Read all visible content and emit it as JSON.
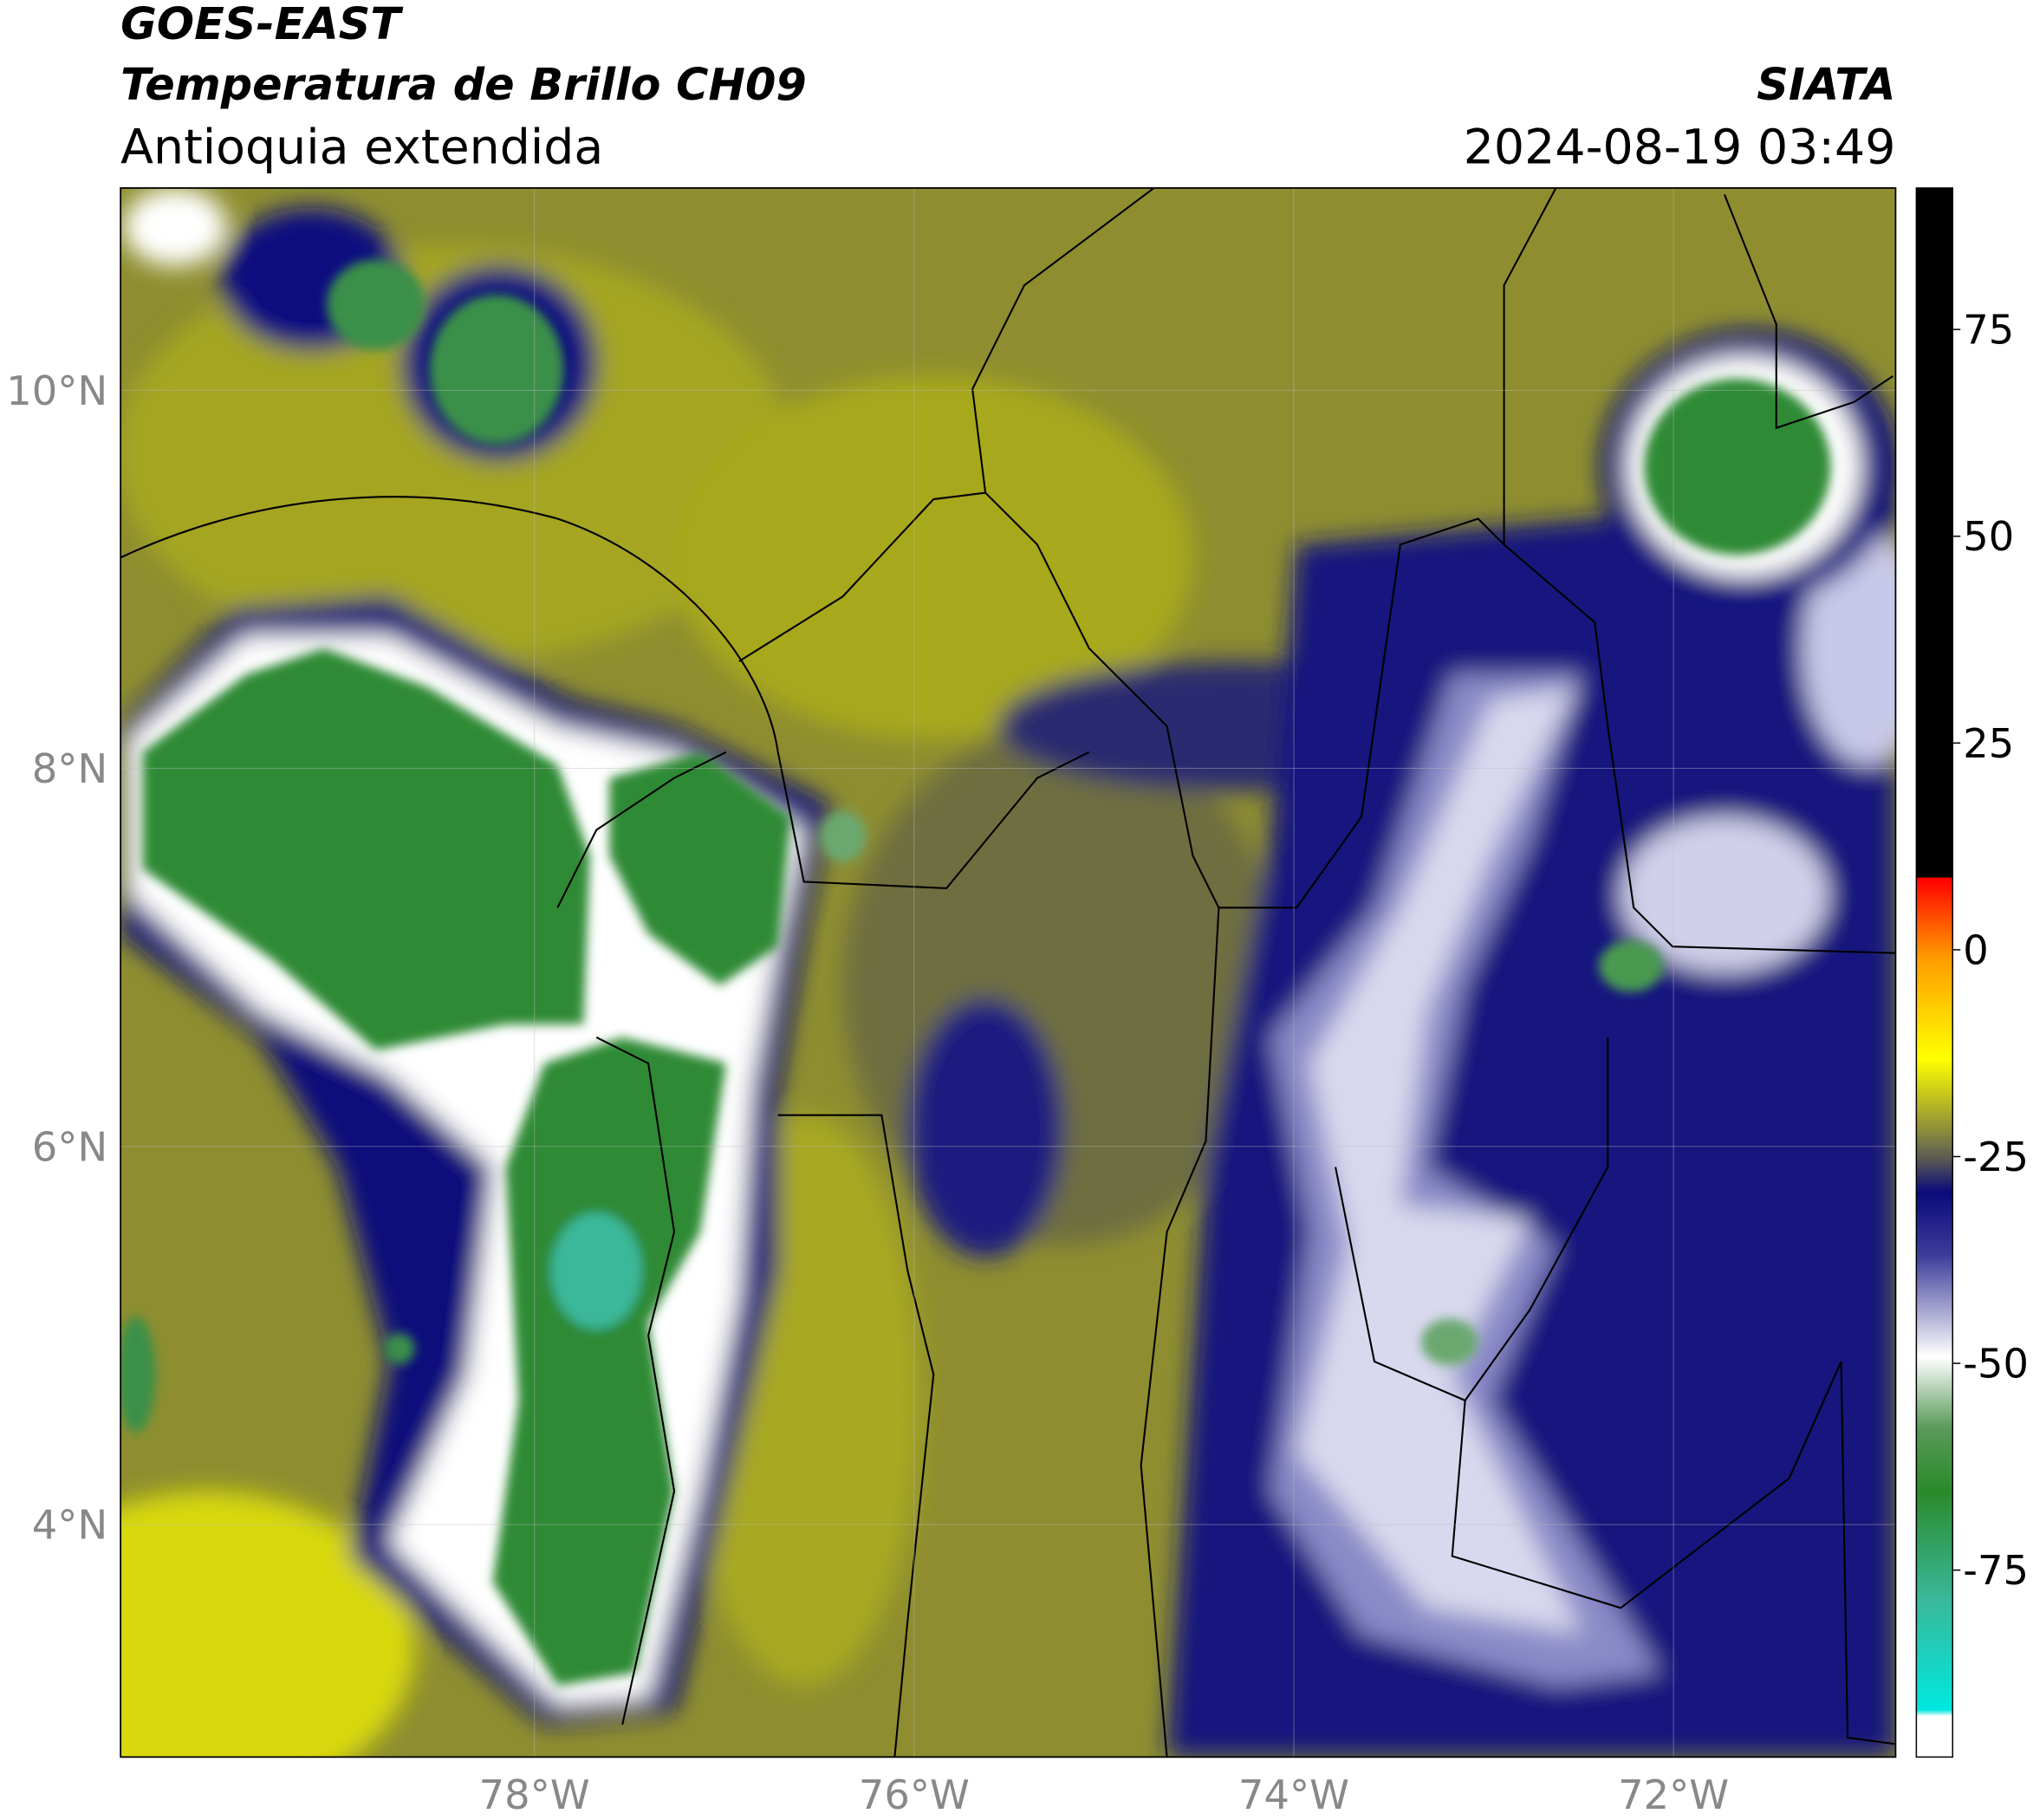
{
  "header": {
    "title": "GOES-EAST",
    "product": "Temperatura de Brillo CH09",
    "region": "Antioquia extendida",
    "agency": "SIATA",
    "datetime": "2024-08-19 03:49"
  },
  "map": {
    "lonlim": [
      -80.18,
      -70.83
    ],
    "latlim": [
      2.77,
      11.07
    ],
    "lon_ticks": [
      {
        "value": -78,
        "label": "78°W"
      },
      {
        "value": -76,
        "label": "76°W"
      },
      {
        "value": -74,
        "label": "74°W"
      },
      {
        "value": -72,
        "label": "72°W"
      }
    ],
    "lat_ticks": [
      {
        "value": 10,
        "label": "10°N"
      },
      {
        "value": 8,
        "label": "8°N"
      },
      {
        "value": 6,
        "label": "6°N"
      },
      {
        "value": 4,
        "label": "4°N"
      }
    ]
  },
  "colorbar": {
    "lim": [
      -97.6,
      92.1
    ],
    "ticks": [
      75,
      50,
      25,
      0,
      -25,
      -50,
      -75
    ]
  }
}
